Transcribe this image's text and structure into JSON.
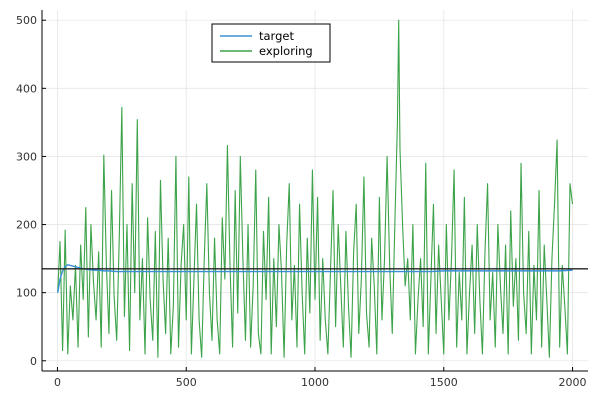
{
  "chart_data": {
    "type": "line",
    "title": "",
    "xlabel": "",
    "ylabel": "",
    "xlim": [
      -60,
      2060
    ],
    "ylim": [
      -15,
      515
    ],
    "x_ticks": [
      0,
      500,
      1000,
      1500,
      2000
    ],
    "y_ticks": [
      0,
      100,
      200,
      300,
      400,
      500
    ],
    "grid": true,
    "legend": "top-center",
    "reference_line": {
      "y": 135,
      "color": "#222222"
    },
    "series": [
      {
        "name": "target",
        "color": "#3a8fd6",
        "x": [
          1,
          10,
          20,
          30,
          40,
          50,
          60,
          70,
          80,
          90,
          100,
          120,
          140,
          160,
          180,
          200,
          230,
          260,
          300,
          350,
          400,
          450,
          500,
          550,
          600,
          650,
          700,
          750,
          800,
          850,
          900,
          950,
          1000,
          1050,
          1100,
          1150,
          1200,
          1250,
          1300,
          1350,
          1400,
          1450,
          1500,
          1550,
          1600,
          1650,
          1700,
          1750,
          1800,
          1850,
          1900,
          1950,
          2000
        ],
        "y": [
          100,
          120,
          132,
          138,
          141,
          140,
          139,
          138,
          137,
          136,
          135,
          134,
          133,
          133,
          132,
          132,
          131,
          131,
          131,
          131,
          131,
          131,
          131,
          131,
          131,
          131,
          131,
          131,
          131,
          131,
          131,
          131,
          131,
          131,
          131,
          131,
          131,
          131,
          131,
          131,
          131,
          131,
          132,
          132,
          132,
          132,
          132,
          132,
          132,
          132,
          132,
          132,
          133
        ]
      },
      {
        "name": "exploring",
        "color": "#3da34a",
        "x": [
          1,
          10,
          20,
          30,
          40,
          50,
          60,
          70,
          80,
          90,
          100,
          110,
          120,
          130,
          140,
          150,
          160,
          170,
          180,
          190,
          200,
          210,
          220,
          230,
          240,
          250,
          260,
          270,
          280,
          290,
          300,
          310,
          320,
          330,
          340,
          350,
          360,
          370,
          380,
          390,
          400,
          410,
          420,
          430,
          440,
          450,
          460,
          470,
          480,
          490,
          500,
          510,
          520,
          530,
          540,
          550,
          560,
          570,
          580,
          590,
          600,
          610,
          620,
          630,
          640,
          650,
          660,
          670,
          680,
          690,
          700,
          710,
          720,
          730,
          740,
          750,
          760,
          770,
          780,
          790,
          800,
          810,
          820,
          830,
          840,
          850,
          860,
          870,
          880,
          890,
          900,
          910,
          920,
          930,
          940,
          950,
          960,
          970,
          980,
          990,
          1000,
          1010,
          1020,
          1030,
          1040,
          1050,
          1060,
          1070,
          1080,
          1090,
          1100,
          1110,
          1120,
          1130,
          1140,
          1150,
          1160,
          1170,
          1180,
          1190,
          1200,
          1210,
          1220,
          1230,
          1240,
          1250,
          1260,
          1270,
          1280,
          1290,
          1300,
          1310,
          1320,
          1325,
          1330,
          1340,
          1350,
          1360,
          1370,
          1380,
          1390,
          1400,
          1410,
          1420,
          1430,
          1440,
          1450,
          1460,
          1470,
          1480,
          1490,
          1500,
          1510,
          1520,
          1530,
          1540,
          1550,
          1560,
          1570,
          1580,
          1590,
          1600,
          1610,
          1620,
          1630,
          1640,
          1650,
          1660,
          1670,
          1680,
          1690,
          1700,
          1710,
          1720,
          1730,
          1740,
          1750,
          1760,
          1770,
          1780,
          1790,
          1800,
          1810,
          1820,
          1830,
          1840,
          1850,
          1860,
          1870,
          1880,
          1890,
          1900,
          1910,
          1920,
          1930,
          1940,
          1950,
          1960,
          1970,
          1980,
          1990,
          2000
        ],
        "y": [
          100,
          175,
          15,
          192,
          10,
          110,
          60,
          140,
          20,
          170,
          90,
          225,
          35,
          200,
          115,
          60,
          160,
          20,
          302,
          140,
          40,
          250,
          95,
          30,
          180,
          372,
          65,
          200,
          15,
          260,
          100,
          354,
          60,
          150,
          10,
          210,
          90,
          30,
          190,
          5,
          265,
          120,
          40,
          180,
          10,
          80,
          300,
          20,
          140,
          200,
          60,
          270,
          10,
          120,
          230,
          60,
          5,
          150,
          260,
          100,
          30,
          180,
          60,
          10,
          210,
          120,
          316,
          140,
          20,
          250,
          70,
          300,
          150,
          30,
          200,
          20,
          110,
          280,
          40,
          10,
          190,
          90,
          240,
          10,
          150,
          50,
          200,
          130,
          5,
          170,
          260,
          60,
          140,
          20,
          230,
          100,
          10,
          180,
          70,
          280,
          90,
          240,
          30,
          150,
          60,
          10,
          130,
          250,
          50,
          200,
          110,
          20,
          190,
          80,
          5,
          160,
          230,
          40,
          120,
          270,
          70,
          20,
          180,
          110,
          10,
          240,
          60,
          150,
          300,
          140,
          40,
          200,
          350,
          500,
          310,
          200,
          110,
          150,
          60,
          200,
          10,
          90,
          150,
          50,
          290,
          10,
          120,
          230,
          40,
          170,
          90,
          10,
          200,
          60,
          150,
          280,
          20,
          130,
          60,
          240,
          10,
          100,
          170,
          40,
          200,
          90,
          10,
          160,
          260,
          60,
          130,
          20,
          200,
          110,
          40,
          170,
          10,
          220,
          80,
          150,
          30,
          290,
          100,
          40,
          190,
          10,
          140,
          60,
          250,
          20,
          170,
          90,
          5,
          150,
          230,
          324,
          20,
          140,
          80,
          10,
          260,
          230
        ]
      }
    ]
  }
}
